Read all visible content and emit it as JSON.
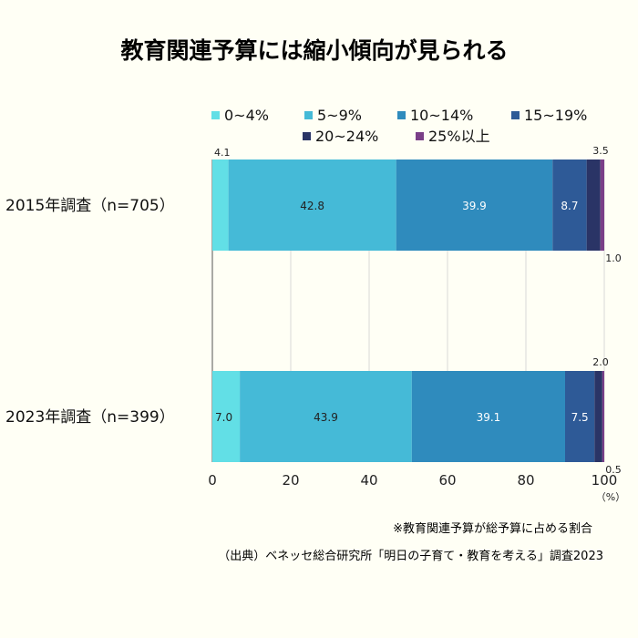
{
  "title": "教育関連予算には縮小傾向が見られる",
  "colors": {
    "background": "#fffff5",
    "grid": "#d8d8d8",
    "axis": "#555555"
  },
  "chart_data": {
    "type": "bar",
    "orientation": "horizontal",
    "stacked": true,
    "categories": [
      "2015年調査（n=705）",
      "2023年調査（n=399）"
    ],
    "series": [
      {
        "name": "0~4%",
        "values": [
          4.1,
          7.0
        ],
        "color": "#62dfe6"
      },
      {
        "name": "5~9%",
        "values": [
          42.8,
          43.9
        ],
        "color": "#45bad7"
      },
      {
        "name": "10~14%",
        "values": [
          39.9,
          39.1
        ],
        "color": "#2f8bbd"
      },
      {
        "name": "15~19%",
        "values": [
          8.7,
          7.5
        ],
        "color": "#2e5a97"
      },
      {
        "name": "20~24%",
        "values": [
          3.5,
          2.0
        ],
        "color": "#2a3466"
      },
      {
        "name": "25%以上",
        "values": [
          1.0,
          0.5
        ],
        "color": "#7a3f88"
      }
    ],
    "data_label_text": [
      [
        "4.1",
        "42.8",
        "39.9",
        "8.7",
        "3.5",
        "1.0"
      ],
      [
        "7.0",
        "43.9",
        "39.1",
        "7.5",
        "2.0",
        "0.5"
      ]
    ],
    "xlim": [
      0,
      100
    ],
    "xticks": [
      "0",
      "20",
      "40",
      "60",
      "80",
      "100"
    ],
    "xunit": "（%）",
    "grid": true,
    "legend_position": "top"
  },
  "notes": {
    "footnote": "※教育関連予算が総予算に占める割合",
    "source": "（出典）ベネッセ総合研究所「明日の子育て・教育を考える」調査2023"
  }
}
